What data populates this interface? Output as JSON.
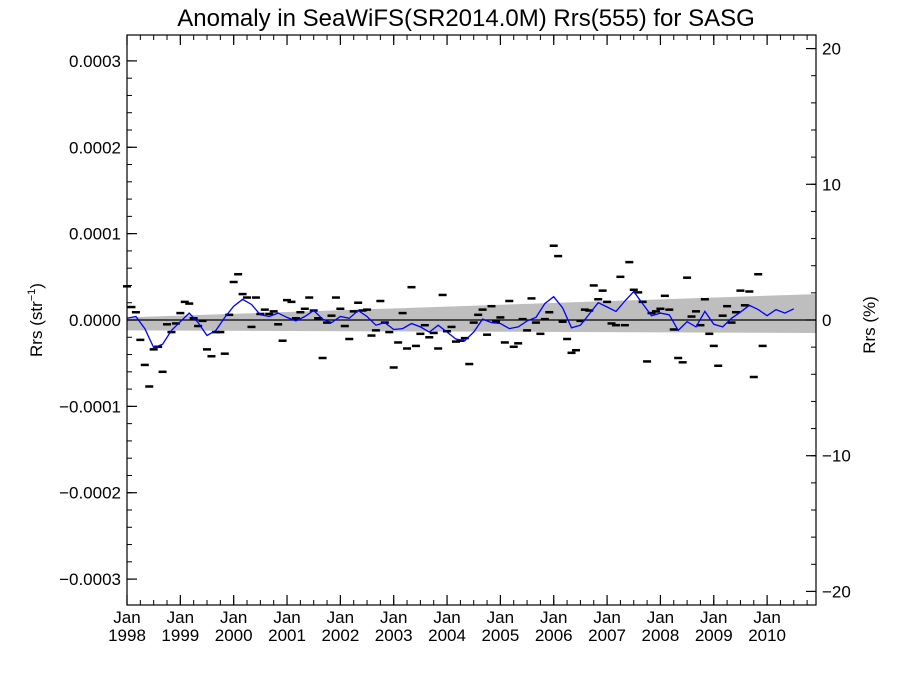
{
  "chart_data": {
    "type": "line",
    "title": "Anomaly in SeaWiFS(SR2014.0M) Rrs(555) for SASG",
    "ylabel_left": "Rrs (str",
    "ylabel_left_sup": "−1",
    "ylabel_left_close": ")",
    "ylabel_right": "Rrs (%)",
    "xlim": [
      "1998-01",
      "2010-12"
    ],
    "ylim_left": [
      -0.00033,
      0.00033
    ],
    "ylim_right": [
      -21,
      21
    ],
    "y_ticks_left": [
      {
        "value": 0.0003,
        "label": "0.0003"
      },
      {
        "value": 0.0002,
        "label": "0.0002"
      },
      {
        "value": 0.0001,
        "label": "0.0001"
      },
      {
        "value": 0.0,
        "label": "0.0000"
      },
      {
        "value": -0.0001,
        "label": "−0.0001"
      },
      {
        "value": -0.0002,
        "label": "−0.0002"
      },
      {
        "value": -0.0003,
        "label": "−0.0003"
      }
    ],
    "y_ticks_right": [
      {
        "value": 20,
        "label": "20"
      },
      {
        "value": 10,
        "label": "10"
      },
      {
        "value": 0,
        "label": "0"
      },
      {
        "value": -10,
        "label": "−10"
      },
      {
        "value": -20,
        "label": "−20"
      }
    ],
    "x_ticks": [
      {
        "value": "1998-01",
        "month": "Jan",
        "year": "1998"
      },
      {
        "value": "1999-01",
        "month": "Jan",
        "year": "1999"
      },
      {
        "value": "2000-01",
        "month": "Jan",
        "year": "2000"
      },
      {
        "value": "2001-01",
        "month": "Jan",
        "year": "2001"
      },
      {
        "value": "2002-01",
        "month": "Jan",
        "year": "2002"
      },
      {
        "value": "2003-01",
        "month": "Jan",
        "year": "2003"
      },
      {
        "value": "2004-01",
        "month": "Jan",
        "year": "2004"
      },
      {
        "value": "2005-01",
        "month": "Jan",
        "year": "2005"
      },
      {
        "value": "2006-01",
        "month": "Jan",
        "year": "2006"
      },
      {
        "value": "2007-01",
        "month": "Jan",
        "year": "2007"
      },
      {
        "value": "2008-01",
        "month": "Jan",
        "year": "2008"
      },
      {
        "value": "2009-01",
        "month": "Jan",
        "year": "2009"
      },
      {
        "value": "2010-01",
        "month": "Jan",
        "year": "2010"
      }
    ],
    "zero_line": 0.0,
    "trend_band": {
      "color": "#bebebe",
      "upper": [
        {
          "x": "1998-01",
          "y": 3e-06
        },
        {
          "x": "2010-12",
          "y": 3e-05
        }
      ],
      "lower": [
        {
          "x": "1998-01",
          "y": -1.2e-05
        },
        {
          "x": "2010-12",
          "y": -1.5e-05
        }
      ]
    },
    "monthly_anomalies": {
      "color": "#000000",
      "marker": "dash",
      "points": [
        {
          "x": "1998-01",
          "y": 3.9e-05
        },
        {
          "x": "1998-02",
          "y": 1.5e-05
        },
        {
          "x": "1998-03",
          "y": 9e-06
        },
        {
          "x": "1998-04",
          "y": -2.3e-05
        },
        {
          "x": "1998-05",
          "y": -5.2e-05
        },
        {
          "x": "1998-06",
          "y": -7.7e-05
        },
        {
          "x": "1998-07",
          "y": -3.4e-05
        },
        {
          "x": "1998-08",
          "y": -3.1e-05
        },
        {
          "x": "1998-09",
          "y": -6e-05
        },
        {
          "x": "1998-10",
          "y": -5e-06
        },
        {
          "x": "1998-11",
          "y": -1.4e-05
        },
        {
          "x": "1998-12",
          "y": -4e-06
        },
        {
          "x": "1999-01",
          "y": 8e-06
        },
        {
          "x": "1999-02",
          "y": 2.1e-05
        },
        {
          "x": "1999-03",
          "y": 1.9e-05
        },
        {
          "x": "1999-04",
          "y": 2e-06
        },
        {
          "x": "1999-05",
          "y": -7e-06
        },
        {
          "x": "1999-06",
          "y": -1e-06
        },
        {
          "x": "1999-07",
          "y": -3.4e-05
        },
        {
          "x": "1999-08",
          "y": -4.2e-05
        },
        {
          "x": "1999-09",
          "y": -1.4e-05
        },
        {
          "x": "1999-10",
          "y": -1.4e-05
        },
        {
          "x": "1999-11",
          "y": -3.9e-05
        },
        {
          "x": "1999-12",
          "y": 6e-06
        },
        {
          "x": "2000-01",
          "y": 4.4e-05
        },
        {
          "x": "2000-02",
          "y": 5.3e-05
        },
        {
          "x": "2000-03",
          "y": 3e-05
        },
        {
          "x": "2000-04",
          "y": 2.6e-05
        },
        {
          "x": "2000-05",
          "y": -8e-06
        },
        {
          "x": "2000-06",
          "y": 2.6e-05
        },
        {
          "x": "2000-07",
          "y": 7e-06
        },
        {
          "x": "2000-08",
          "y": 1.2e-05
        },
        {
          "x": "2000-09",
          "y": 7e-06
        },
        {
          "x": "2000-10",
          "y": 1e-05
        },
        {
          "x": "2000-11",
          "y": -5e-06
        },
        {
          "x": "2000-12",
          "y": -2.4e-05
        },
        {
          "x": "2001-01",
          "y": 2.3e-05
        },
        {
          "x": "2001-02",
          "y": 2.1e-05
        },
        {
          "x": "2001-03",
          "y": 2e-06
        },
        {
          "x": "2001-04",
          "y": 9e-06
        },
        {
          "x": "2001-05",
          "y": 1.3e-05
        },
        {
          "x": "2001-06",
          "y": 2.6e-05
        },
        {
          "x": "2001-07",
          "y": 1.1e-05
        },
        {
          "x": "2001-08",
          "y": 2e-06
        },
        {
          "x": "2001-09",
          "y": -4.4e-05
        },
        {
          "x": "2001-10",
          "y": -3e-06
        },
        {
          "x": "2001-11",
          "y": 5e-06
        },
        {
          "x": "2001-12",
          "y": 2.6e-05
        },
        {
          "x": "2002-01",
          "y": 1.3e-05
        },
        {
          "x": "2002-02",
          "y": -7e-06
        },
        {
          "x": "2002-03",
          "y": -2.2e-05
        },
        {
          "x": "2002-04",
          "y": 1e-05
        },
        {
          "x": "2002-05",
          "y": 2e-05
        },
        {
          "x": "2002-06",
          "y": 1.1e-05
        },
        {
          "x": "2002-07",
          "y": 1.2e-05
        },
        {
          "x": "2002-08",
          "y": -1.8e-05
        },
        {
          "x": "2002-09",
          "y": -1.2e-05
        },
        {
          "x": "2002-10",
          "y": 2.2e-05
        },
        {
          "x": "2002-11",
          "y": -3e-06
        },
        {
          "x": "2002-12",
          "y": -1.4e-05
        },
        {
          "x": "2003-01",
          "y": -5.5e-05
        },
        {
          "x": "2003-02",
          "y": -2.6e-05
        },
        {
          "x": "2003-03",
          "y": 8e-06
        },
        {
          "x": "2003-04",
          "y": -3.3e-05
        },
        {
          "x": "2003-05",
          "y": 3.8e-05
        },
        {
          "x": "2003-06",
          "y": -3e-05
        },
        {
          "x": "2003-07",
          "y": -1.6e-05
        },
        {
          "x": "2003-08",
          "y": -6e-06
        },
        {
          "x": "2003-09",
          "y": -2e-05
        },
        {
          "x": "2003-10",
          "y": -1.5e-05
        },
        {
          "x": "2003-11",
          "y": -3.3e-05
        },
        {
          "x": "2003-12",
          "y": 2.9e-05
        },
        {
          "x": "2004-01",
          "y": -1.3e-05
        },
        {
          "x": "2004-02",
          "y": -8e-06
        },
        {
          "x": "2004-03",
          "y": -2.5e-05
        },
        {
          "x": "2004-04",
          "y": -2.4e-05
        },
        {
          "x": "2004-05",
          "y": -2.1e-05
        },
        {
          "x": "2004-06",
          "y": -5.1e-05
        },
        {
          "x": "2004-07",
          "y": -3e-06
        },
        {
          "x": "2004-08",
          "y": 6e-06
        },
        {
          "x": "2004-09",
          "y": 1.2e-05
        },
        {
          "x": "2004-10",
          "y": -1.7e-05
        },
        {
          "x": "2004-11",
          "y": 1.6e-05
        },
        {
          "x": "2004-12",
          "y": -2e-06
        },
        {
          "x": "2005-01",
          "y": 3e-06
        },
        {
          "x": "2005-02",
          "y": -2.6e-05
        },
        {
          "x": "2005-03",
          "y": 2.2e-05
        },
        {
          "x": "2005-04",
          "y": -3.1e-05
        },
        {
          "x": "2005-05",
          "y": -2.7e-05
        },
        {
          "x": "2005-06",
          "y": 1e-06
        },
        {
          "x": "2005-07",
          "y": -1.2e-05
        },
        {
          "x": "2005-08",
          "y": 2.5e-05
        },
        {
          "x": "2005-09",
          "y": -3e-06
        },
        {
          "x": "2005-10",
          "y": -1.6e-05
        },
        {
          "x": "2005-11",
          "y": 1e-06
        },
        {
          "x": "2005-12",
          "y": 9e-06
        },
        {
          "x": "2006-01",
          "y": 8.6e-05
        },
        {
          "x": "2006-02",
          "y": 7.4e-05
        },
        {
          "x": "2006-03",
          "y": -2e-06
        },
        {
          "x": "2006-04",
          "y": -2.2e-05
        },
        {
          "x": "2006-05",
          "y": -3.8e-05
        },
        {
          "x": "2006-06",
          "y": -3.5e-05
        },
        {
          "x": "2006-07",
          "y": -1e-06
        },
        {
          "x": "2006-08",
          "y": 1.2e-05
        },
        {
          "x": "2006-09",
          "y": 1.1e-05
        },
        {
          "x": "2006-10",
          "y": 4e-05
        },
        {
          "x": "2006-11",
          "y": 2.4e-05
        },
        {
          "x": "2006-12",
          "y": 3.4e-05
        },
        {
          "x": "2007-01",
          "y": 2.1e-05
        },
        {
          "x": "2007-02",
          "y": -4e-06
        },
        {
          "x": "2007-03",
          "y": -6e-06
        },
        {
          "x": "2007-04",
          "y": 5e-05
        },
        {
          "x": "2007-05",
          "y": -6e-06
        },
        {
          "x": "2007-06",
          "y": 6.7e-05
        },
        {
          "x": "2007-07",
          "y": 3.5e-05
        },
        {
          "x": "2007-08",
          "y": 3.2e-05
        },
        {
          "x": "2007-09",
          "y": 2.1e-05
        },
        {
          "x": "2007-10",
          "y": -4.8e-05
        },
        {
          "x": "2007-11",
          "y": 8e-06
        },
        {
          "x": "2007-12",
          "y": 1e-05
        },
        {
          "x": "2008-01",
          "y": 1.3e-05
        },
        {
          "x": "2008-02",
          "y": 2.8e-05
        },
        {
          "x": "2008-03",
          "y": 1.2e-05
        },
        {
          "x": "2008-04",
          "y": -1.1e-05
        },
        {
          "x": "2008-05",
          "y": -4.4e-05
        },
        {
          "x": "2008-06",
          "y": -4.9e-05
        },
        {
          "x": "2008-07",
          "y": 4.9e-05
        },
        {
          "x": "2008-08",
          "y": 4e-06
        },
        {
          "x": "2008-09",
          "y": 1e-05
        },
        {
          "x": "2008-10",
          "y": -6e-06
        },
        {
          "x": "2008-11",
          "y": 2.4e-05
        },
        {
          "x": "2008-12",
          "y": -1.6e-05
        },
        {
          "x": "2009-01",
          "y": -3e-05
        },
        {
          "x": "2009-02",
          "y": -5.3e-05
        },
        {
          "x": "2009-03",
          "y": 5e-06
        },
        {
          "x": "2009-04",
          "y": 1.6e-05
        },
        {
          "x": "2009-05",
          "y": -3e-06
        },
        {
          "x": "2009-06",
          "y": 9e-06
        },
        {
          "x": "2009-07",
          "y": 3.4e-05
        },
        {
          "x": "2009-08",
          "y": 1.7e-05
        },
        {
          "x": "2009-09",
          "y": 3.3e-05
        },
        {
          "x": "2009-10",
          "y": -6.6e-05
        },
        {
          "x": "2009-11",
          "y": 5.3e-05
        },
        {
          "x": "2009-12",
          "y": -3e-05
        }
      ]
    },
    "running_mean": {
      "color": "#0000ff",
      "points": [
        {
          "x": "1998-01",
          "y": 2e-06
        },
        {
          "x": "1998-03",
          "y": 4e-06
        },
        {
          "x": "1998-05",
          "y": -1e-05
        },
        {
          "x": "1998-07",
          "y": -3.2e-05
        },
        {
          "x": "1998-09",
          "y": -2.8e-05
        },
        {
          "x": "1998-11",
          "y": -1.2e-05
        },
        {
          "x": "1999-01",
          "y": -2e-06
        },
        {
          "x": "1999-03",
          "y": 8e-06
        },
        {
          "x": "1999-05",
          "y": -3e-06
        },
        {
          "x": "1999-07",
          "y": -1.8e-05
        },
        {
          "x": "1999-09",
          "y": -1.2e-05
        },
        {
          "x": "1999-11",
          "y": 3e-06
        },
        {
          "x": "2000-01",
          "y": 1.6e-05
        },
        {
          "x": "2000-03",
          "y": 2.4e-05
        },
        {
          "x": "2000-05",
          "y": 1.8e-05
        },
        {
          "x": "2000-07",
          "y": 6e-06
        },
        {
          "x": "2000-09",
          "y": 4e-06
        },
        {
          "x": "2000-11",
          "y": 8e-06
        },
        {
          "x": "2001-01",
          "y": 3e-06
        },
        {
          "x": "2001-03",
          "y": -1e-06
        },
        {
          "x": "2001-05",
          "y": 4e-06
        },
        {
          "x": "2001-07",
          "y": 1.1e-05
        },
        {
          "x": "2001-09",
          "y": 1e-06
        },
        {
          "x": "2001-11",
          "y": -3e-06
        },
        {
          "x": "2002-01",
          "y": 4e-06
        },
        {
          "x": "2002-03",
          "y": 2e-06
        },
        {
          "x": "2002-05",
          "y": 1.1e-05
        },
        {
          "x": "2002-07",
          "y": 4e-06
        },
        {
          "x": "2002-09",
          "y": -6e-06
        },
        {
          "x": "2002-11",
          "y": -3e-06
        },
        {
          "x": "2003-01",
          "y": -1.1e-05
        },
        {
          "x": "2003-03",
          "y": -1e-05
        },
        {
          "x": "2003-05",
          "y": -4e-06
        },
        {
          "x": "2003-07",
          "y": -8e-06
        },
        {
          "x": "2003-09",
          "y": -1.4e-05
        },
        {
          "x": "2003-11",
          "y": -6e-06
        },
        {
          "x": "2004-01",
          "y": -1.4e-05
        },
        {
          "x": "2004-03",
          "y": -2.2e-05
        },
        {
          "x": "2004-05",
          "y": -2.4e-05
        },
        {
          "x": "2004-07",
          "y": -1.4e-05
        },
        {
          "x": "2004-09",
          "y": 1e-06
        },
        {
          "x": "2004-11",
          "y": -3e-06
        },
        {
          "x": "2005-01",
          "y": -4e-06
        },
        {
          "x": "2005-03",
          "y": -1e-05
        },
        {
          "x": "2005-05",
          "y": -8e-06
        },
        {
          "x": "2005-07",
          "y": -1e-06
        },
        {
          "x": "2005-09",
          "y": 3e-06
        },
        {
          "x": "2005-11",
          "y": 1.9e-05
        },
        {
          "x": "2006-01",
          "y": 2.7e-05
        },
        {
          "x": "2006-03",
          "y": 1.4e-05
        },
        {
          "x": "2006-05",
          "y": -9e-06
        },
        {
          "x": "2006-07",
          "y": -6e-06
        },
        {
          "x": "2006-09",
          "y": 7e-06
        },
        {
          "x": "2006-11",
          "y": 2e-05
        },
        {
          "x": "2007-01",
          "y": 1.5e-05
        },
        {
          "x": "2007-03",
          "y": 1e-05
        },
        {
          "x": "2007-05",
          "y": 2.2e-05
        },
        {
          "x": "2007-07",
          "y": 3.3e-05
        },
        {
          "x": "2007-09",
          "y": 1.9e-05
        },
        {
          "x": "2007-11",
          "y": 5e-06
        },
        {
          "x": "2008-01",
          "y": 8e-06
        },
        {
          "x": "2008-03",
          "y": 6e-06
        },
        {
          "x": "2008-05",
          "y": -1.2e-05
        },
        {
          "x": "2008-07",
          "y": -2e-06
        },
        {
          "x": "2008-09",
          "y": -8e-06
        },
        {
          "x": "2008-11",
          "y": 1e-05
        },
        {
          "x": "2009-01",
          "y": -5e-06
        },
        {
          "x": "2009-03",
          "y": -8e-06
        },
        {
          "x": "2009-05",
          "y": 2e-06
        },
        {
          "x": "2009-07",
          "y": 9e-06
        },
        {
          "x": "2009-09",
          "y": 1.7e-05
        },
        {
          "x": "2009-11",
          "y": 1.2e-05
        },
        {
          "x": "2010-01",
          "y": 5e-06
        },
        {
          "x": "2010-03",
          "y": 1.2e-05
        },
        {
          "x": "2010-05",
          "y": 8e-06
        },
        {
          "x": "2010-07",
          "y": 1.3e-05
        }
      ]
    },
    "grid": false
  }
}
